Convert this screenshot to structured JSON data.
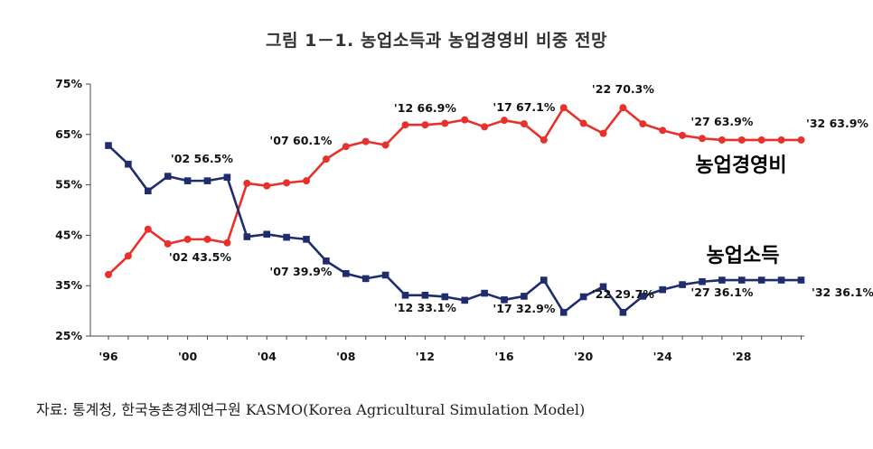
{
  "title": "그림 1－1.  농업소득과 농업경영비 비중 전망",
  "source": "자료: 통계청, 한국농촌경제연구원 KASMO(Korea Agricultural Simulation Model)",
  "chart_data": {
    "type": "line",
    "ylim": [
      25,
      75
    ],
    "yticks": [
      25,
      35,
      45,
      55,
      65,
      75
    ],
    "ytick_labels": [
      "25%",
      "35%",
      "45%",
      "55%",
      "65%",
      "75%"
    ],
    "xlim": [
      1996,
      2031
    ],
    "xticks": [
      1996,
      2000,
      2004,
      2008,
      2012,
      2016,
      2020,
      2024,
      2028
    ],
    "xtick_labels": [
      "'96",
      "'00",
      "'04",
      "'08",
      "'12",
      "'16",
      "'20",
      "'24",
      "'28"
    ],
    "x": [
      1996,
      1997,
      1998,
      1999,
      2000,
      2001,
      2002,
      2003,
      2004,
      2005,
      2006,
      2007,
      2008,
      2009,
      2010,
      2011,
      2012,
      2013,
      2014,
      2015,
      2016,
      2017,
      2018,
      2019,
      2020,
      2021,
      2022,
      2023,
      2024,
      2025,
      2026,
      2027,
      2028,
      2029,
      2030,
      2031
    ],
    "series": [
      {
        "name": "농업경영비",
        "color": "#e8312b",
        "marker": "circle",
        "values": [
          37.2,
          40.9,
          46.2,
          43.3,
          44.2,
          44.2,
          43.5,
          55.3,
          54.8,
          55.4,
          55.8,
          60.1,
          62.6,
          63.6,
          62.9,
          66.9,
          66.9,
          67.2,
          67.9,
          66.5,
          67.8,
          67.1,
          63.9,
          70.3,
          67.2,
          65.2,
          70.3,
          67.1,
          65.8,
          64.8,
          64.2,
          63.9,
          63.9,
          63.9,
          63.9,
          63.9
        ]
      },
      {
        "name": "농업소득",
        "color": "#1f2d6e",
        "marker": "square",
        "values": [
          62.8,
          59.1,
          53.8,
          56.7,
          55.8,
          55.8,
          56.5,
          44.7,
          45.2,
          44.6,
          44.2,
          39.9,
          37.4,
          36.4,
          37.1,
          33.1,
          33.1,
          32.8,
          32.1,
          33.5,
          32.2,
          32.9,
          36.1,
          29.7,
          32.8,
          34.8,
          29.7,
          32.9,
          34.2,
          35.2,
          35.8,
          36.1,
          36.1,
          36.1,
          36.1,
          36.1
        ]
      }
    ],
    "annotations": [
      {
        "text": "'02 56.5%",
        "x": 2002,
        "y": 56.5
      },
      {
        "text": "'07 60.1%",
        "x": 2007,
        "y": 60.1
      },
      {
        "text": "'12 66.9%",
        "x": 2012,
        "y": 66.9
      },
      {
        "text": "'17 67.1%",
        "x": 2017,
        "y": 67.1
      },
      {
        "text": "'22 70.3%",
        "x": 2022,
        "y": 70.3
      },
      {
        "text": "'27 63.9%",
        "x": 2027,
        "y": 63.9
      },
      {
        "text": "'32 63.9%",
        "x": 2031,
        "y": 63.9
      },
      {
        "text": "'02 43.5%",
        "x": 2002,
        "y": 43.5
      },
      {
        "text": "'07 39.9%",
        "x": 2007,
        "y": 39.9
      },
      {
        "text": "'12 33.1%",
        "x": 2012,
        "y": 33.1
      },
      {
        "text": "'17 32.9%",
        "x": 2017,
        "y": 32.9
      },
      {
        "text": "'22 29.7%",
        "x": 2022,
        "y": 29.7
      },
      {
        "text": "'27 36.1%",
        "x": 2027,
        "y": 36.1
      },
      {
        "text": "'32 36.1%",
        "x": 2031,
        "y": 36.1
      }
    ],
    "grid": false,
    "legend": "inline labels"
  }
}
